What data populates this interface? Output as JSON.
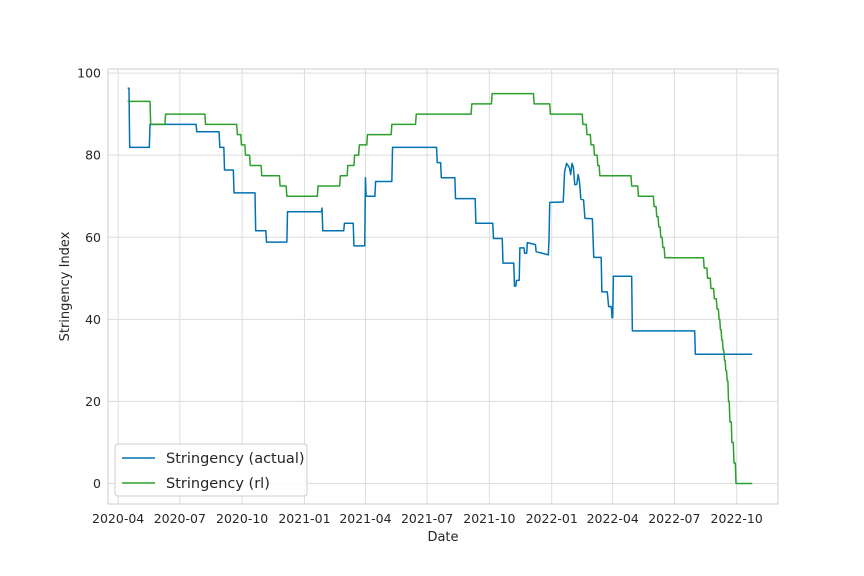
{
  "chart_data": {
    "type": "line",
    "xlabel": "Date",
    "ylabel": "Stringency Index",
    "xlim": [
      "2020-03-17",
      "2022-12-01"
    ],
    "ylim": [
      -5,
      101
    ],
    "grid": true,
    "legend_position": "lower-left",
    "x_ticks": [
      "2020-04",
      "2020-07",
      "2020-10",
      "2021-01",
      "2021-04",
      "2021-07",
      "2021-10",
      "2022-01",
      "2022-04",
      "2022-07",
      "2022-10"
    ],
    "y_ticks": [
      0,
      20,
      40,
      60,
      80,
      100
    ],
    "series": [
      {
        "name": "Stringency (actual)",
        "color": "#0072B2",
        "points": [
          [
            "2020-04-15",
            96.3
          ],
          [
            "2020-04-17",
            96.3
          ],
          [
            "2020-04-18",
            81.9
          ],
          [
            "2020-05-17",
            81.9
          ],
          [
            "2020-05-18",
            87.5
          ],
          [
            "2020-07-25",
            87.5
          ],
          [
            "2020-07-26",
            85.7
          ],
          [
            "2020-08-28",
            85.7
          ],
          [
            "2020-08-29",
            81.9
          ],
          [
            "2020-09-04",
            81.9
          ],
          [
            "2020-09-05",
            76.4
          ],
          [
            "2020-09-18",
            76.4
          ],
          [
            "2020-09-19",
            70.8
          ],
          [
            "2020-10-20",
            70.8
          ],
          [
            "2020-10-21",
            61.6
          ],
          [
            "2020-11-05",
            61.6
          ],
          [
            "2020-11-06",
            58.8
          ],
          [
            "2020-12-06",
            58.8
          ],
          [
            "2020-12-07",
            66.2
          ],
          [
            "2021-01-26",
            66.2
          ],
          [
            "2021-01-27",
            67.1
          ],
          [
            "2021-01-28",
            61.6
          ],
          [
            "2021-02-28",
            61.6
          ],
          [
            "2021-03-01",
            63.4
          ],
          [
            "2021-03-14",
            63.4
          ],
          [
            "2021-03-15",
            57.9
          ],
          [
            "2021-03-31",
            57.9
          ],
          [
            "2021-04-01",
            74.5
          ],
          [
            "2021-04-02",
            70.0
          ],
          [
            "2021-04-15",
            70.0
          ],
          [
            "2021-04-16",
            73.6
          ],
          [
            "2021-05-10",
            73.6
          ],
          [
            "2021-05-11",
            81.9
          ],
          [
            "2021-07-15",
            81.9
          ],
          [
            "2021-07-16",
            78.2
          ],
          [
            "2021-07-21",
            78.2
          ],
          [
            "2021-07-22",
            74.5
          ],
          [
            "2021-08-11",
            74.5
          ],
          [
            "2021-08-12",
            69.4
          ],
          [
            "2021-09-10",
            69.4
          ],
          [
            "2021-09-11",
            63.4
          ],
          [
            "2021-10-06",
            63.4
          ],
          [
            "2021-10-07",
            59.7
          ],
          [
            "2021-10-20",
            59.7
          ],
          [
            "2021-10-21",
            53.7
          ],
          [
            "2021-11-06",
            53.7
          ],
          [
            "2021-11-07",
            48.1
          ],
          [
            "2021-11-09",
            48.1
          ],
          [
            "2021-11-10",
            49.5
          ],
          [
            "2021-11-14",
            49.5
          ],
          [
            "2021-11-15",
            57.4
          ],
          [
            "2021-11-21",
            57.4
          ],
          [
            "2021-11-22",
            56.1
          ],
          [
            "2021-11-25",
            56.1
          ],
          [
            "2021-11-26",
            58.7
          ],
          [
            "2021-12-08",
            58.2
          ],
          [
            "2021-12-09",
            56.5
          ],
          [
            "2021-12-27",
            55.7
          ],
          [
            "2021-12-28",
            59.4
          ],
          [
            "2021-12-29",
            68.5
          ],
          [
            "2022-01-18",
            68.6
          ],
          [
            "2022-01-20",
            76.0
          ],
          [
            "2022-01-23",
            78.0
          ],
          [
            "2022-01-27",
            77.0
          ],
          [
            "2022-01-29",
            75.3
          ],
          [
            "2022-01-31",
            78.0
          ],
          [
            "2022-02-02",
            77.0
          ],
          [
            "2022-02-04",
            72.8
          ],
          [
            "2022-02-07",
            72.9
          ],
          [
            "2022-02-09",
            75.3
          ],
          [
            "2022-02-11",
            73.5
          ],
          [
            "2022-02-13",
            69.3
          ],
          [
            "2022-02-17",
            69.1
          ],
          [
            "2022-02-19",
            64.6
          ],
          [
            "2022-03-02",
            64.5
          ],
          [
            "2022-03-04",
            55.1
          ],
          [
            "2022-03-15",
            55.1
          ],
          [
            "2022-03-16",
            46.7
          ],
          [
            "2022-03-24",
            46.7
          ],
          [
            "2022-03-26",
            43.1
          ],
          [
            "2022-03-30",
            43.1
          ],
          [
            "2022-03-31",
            40.4
          ],
          [
            "2022-04-01",
            40.4
          ],
          [
            "2022-04-02",
            50.5
          ],
          [
            "2022-04-29",
            50.5
          ],
          [
            "2022-04-30",
            37.2
          ],
          [
            "2022-07-31",
            37.2
          ],
          [
            "2022-08-01",
            31.5
          ],
          [
            "2022-10-24",
            31.5
          ]
        ]
      },
      {
        "name": "Stringency (rl)",
        "color": "#2CA02C",
        "points": [
          [
            "2020-04-15",
            93.1
          ],
          [
            "2020-05-18",
            93.1
          ],
          [
            "2020-05-19",
            87.5
          ],
          [
            "2020-06-09",
            87.5
          ],
          [
            "2020-06-10",
            90.0
          ],
          [
            "2020-08-07",
            90.0
          ],
          [
            "2020-08-08",
            87.5
          ],
          [
            "2020-09-23",
            87.5
          ],
          [
            "2020-09-24",
            85.0
          ],
          [
            "2020-09-29",
            85.0
          ],
          [
            "2020-09-30",
            82.5
          ],
          [
            "2020-10-05",
            82.5
          ],
          [
            "2020-10-06",
            80.0
          ],
          [
            "2020-10-12",
            80.0
          ],
          [
            "2020-10-13",
            77.5
          ],
          [
            "2020-10-29",
            77.5
          ],
          [
            "2020-10-30",
            75.0
          ],
          [
            "2020-11-25",
            75.0
          ],
          [
            "2020-11-26",
            72.5
          ],
          [
            "2020-12-05",
            72.5
          ],
          [
            "2020-12-06",
            70.0
          ],
          [
            "2021-01-20",
            70.0
          ],
          [
            "2021-01-21",
            72.5
          ],
          [
            "2021-02-22",
            72.5
          ],
          [
            "2021-02-23",
            75.0
          ],
          [
            "2021-03-05",
            75.0
          ],
          [
            "2021-03-06",
            77.5
          ],
          [
            "2021-03-15",
            77.5
          ],
          [
            "2021-03-16",
            80.0
          ],
          [
            "2021-03-22",
            80.0
          ],
          [
            "2021-03-23",
            82.5
          ],
          [
            "2021-04-03",
            82.5
          ],
          [
            "2021-04-04",
            85.0
          ],
          [
            "2021-05-09",
            85.0
          ],
          [
            "2021-05-10",
            87.5
          ],
          [
            "2021-06-14",
            87.5
          ],
          [
            "2021-06-15",
            90.0
          ],
          [
            "2021-09-04",
            90.0
          ],
          [
            "2021-09-05",
            92.5
          ],
          [
            "2021-10-04",
            92.5
          ],
          [
            "2021-10-05",
            95.0
          ],
          [
            "2021-12-05",
            95.0
          ],
          [
            "2021-12-06",
            92.5
          ],
          [
            "2021-12-29",
            92.5
          ],
          [
            "2021-12-30",
            90.0
          ],
          [
            "2022-02-15",
            90.0
          ],
          [
            "2022-02-16",
            87.5
          ],
          [
            "2022-02-21",
            87.5
          ],
          [
            "2022-02-22",
            85.0
          ],
          [
            "2022-02-27",
            85.0
          ],
          [
            "2022-02-28",
            82.5
          ],
          [
            "2022-03-04",
            82.5
          ],
          [
            "2022-03-05",
            80.0
          ],
          [
            "2022-03-09",
            80.0
          ],
          [
            "2022-03-10",
            77.5
          ],
          [
            "2022-03-12",
            77.5
          ],
          [
            "2022-03-13",
            75.0
          ],
          [
            "2022-04-28",
            75.0
          ],
          [
            "2022-04-29",
            72.5
          ],
          [
            "2022-05-08",
            72.5
          ],
          [
            "2022-05-09",
            70.0
          ],
          [
            "2022-05-31",
            70.0
          ],
          [
            "2022-06-01",
            67.5
          ],
          [
            "2022-06-04",
            67.5
          ],
          [
            "2022-06-05",
            65.0
          ],
          [
            "2022-06-07",
            65.0
          ],
          [
            "2022-06-08",
            62.5
          ],
          [
            "2022-06-10",
            62.5
          ],
          [
            "2022-06-11",
            60.0
          ],
          [
            "2022-06-13",
            60.0
          ],
          [
            "2022-06-14",
            57.5
          ],
          [
            "2022-06-16",
            57.5
          ],
          [
            "2022-06-17",
            55.0
          ],
          [
            "2022-08-13",
            55.0
          ],
          [
            "2022-08-14",
            52.5
          ],
          [
            "2022-08-18",
            52.5
          ],
          [
            "2022-08-19",
            50.0
          ],
          [
            "2022-08-23",
            50.0
          ],
          [
            "2022-08-24",
            47.5
          ],
          [
            "2022-08-28",
            47.5
          ],
          [
            "2022-08-29",
            45.0
          ],
          [
            "2022-09-01",
            45.0
          ],
          [
            "2022-09-02",
            42.5
          ],
          [
            "2022-09-04",
            42.5
          ],
          [
            "2022-09-05",
            40.0
          ],
          [
            "2022-09-06",
            40.0
          ],
          [
            "2022-09-07",
            37.5
          ],
          [
            "2022-09-08",
            37.5
          ],
          [
            "2022-09-09",
            35.0
          ],
          [
            "2022-09-10",
            35.0
          ],
          [
            "2022-09-11",
            32.5
          ],
          [
            "2022-09-12",
            32.5
          ],
          [
            "2022-09-13",
            30.0
          ],
          [
            "2022-09-14",
            30.0
          ],
          [
            "2022-09-15",
            27.5
          ],
          [
            "2022-09-16",
            27.5
          ],
          [
            "2022-09-17",
            25.0
          ],
          [
            "2022-09-18",
            25.0
          ],
          [
            "2022-09-19",
            20.0
          ],
          [
            "2022-09-20",
            20.0
          ],
          [
            "2022-09-21",
            15.0
          ],
          [
            "2022-09-23",
            15.0
          ],
          [
            "2022-09-24",
            10.0
          ],
          [
            "2022-09-26",
            10.0
          ],
          [
            "2022-09-27",
            5.0
          ],
          [
            "2022-09-29",
            5.0
          ],
          [
            "2022-09-30",
            0.0
          ],
          [
            "2022-10-24",
            0.0
          ]
        ]
      }
    ]
  }
}
